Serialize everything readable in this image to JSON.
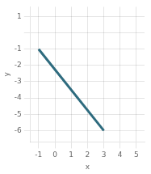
{
  "chart_data": {
    "type": "line",
    "x": [
      -1,
      3
    ],
    "values": [
      -1,
      -6
    ],
    "color": "#2e6b7e",
    "x_label": "x",
    "y_label": "y",
    "xlim": [
      -1.5,
      5.5
    ],
    "ylim": [
      -6.7,
      1.6
    ],
    "xticks": [
      -1,
      0,
      1,
      2,
      3,
      4,
      5
    ],
    "yticks": [
      -6,
      -5,
      -4,
      -3,
      -2,
      -1,
      {
        "value": 0,
        "label": ""
      },
      1
    ],
    "grid": true
  }
}
